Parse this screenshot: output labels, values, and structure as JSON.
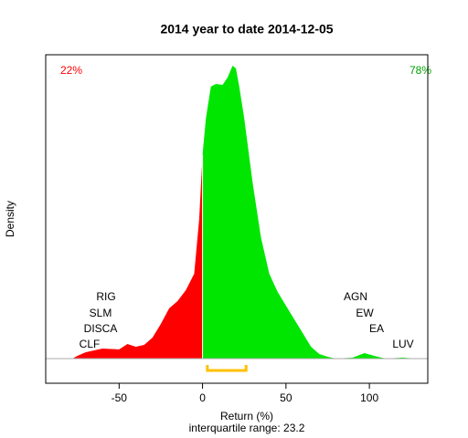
{
  "chart_data": {
    "type": "area",
    "title": "2014  year to date 2014-12-05",
    "xlabel": "Return (%)",
    "ylabel": "Density",
    "subtitle": "interquartile range: 23.2",
    "left_share": "22%",
    "right_share": "78%",
    "left_names": [
      "RIG",
      "SLM",
      "DISCA",
      "CLF"
    ],
    "right_names": [
      "AGN",
      "EW",
      "EA",
      "LUV"
    ],
    "xlim": [
      -94,
      135
    ],
    "ylim": [
      -0.0015,
      0.0185
    ],
    "xticks": [
      -50,
      0,
      50,
      100
    ],
    "iqr": [
      2.9,
      26.1
    ],
    "iqr_color": "#ffc000",
    "series": [
      {
        "color": "#ff0000",
        "x": [
          -78,
          -75,
          -70,
          -60,
          -50,
          -45,
          -40,
          -35,
          -30,
          -25,
          -20,
          -15,
          -10,
          -5,
          -2,
          0
        ],
        "values": [
          0,
          0.00017,
          0.00039,
          0.00061,
          0.00056,
          0.00089,
          0.00072,
          0.00083,
          0.00128,
          0.00211,
          0.00306,
          0.0035,
          0.00417,
          0.00517,
          0.0085,
          0.0124
        ]
      },
      {
        "color": "#00e600",
        "x": [
          0,
          2,
          5,
          8,
          12,
          15,
          18,
          20,
          22,
          25,
          30,
          35,
          40,
          45,
          50,
          55,
          60,
          65,
          70,
          75,
          80,
          90,
          97,
          105,
          110,
          120,
          128
        ],
        "values": [
          0.0124,
          0.01461,
          0.01656,
          0.01672,
          0.01667,
          0.01711,
          0.01783,
          0.01767,
          0.01656,
          0.01461,
          0.01072,
          0.00739,
          0.00517,
          0.00406,
          0.00322,
          0.00239,
          0.00156,
          0.00072,
          0.00028,
          0.00011,
          0,
          6e-05,
          0.00033,
          0.00011,
          0,
          6e-05,
          0
        ]
      }
    ]
  }
}
